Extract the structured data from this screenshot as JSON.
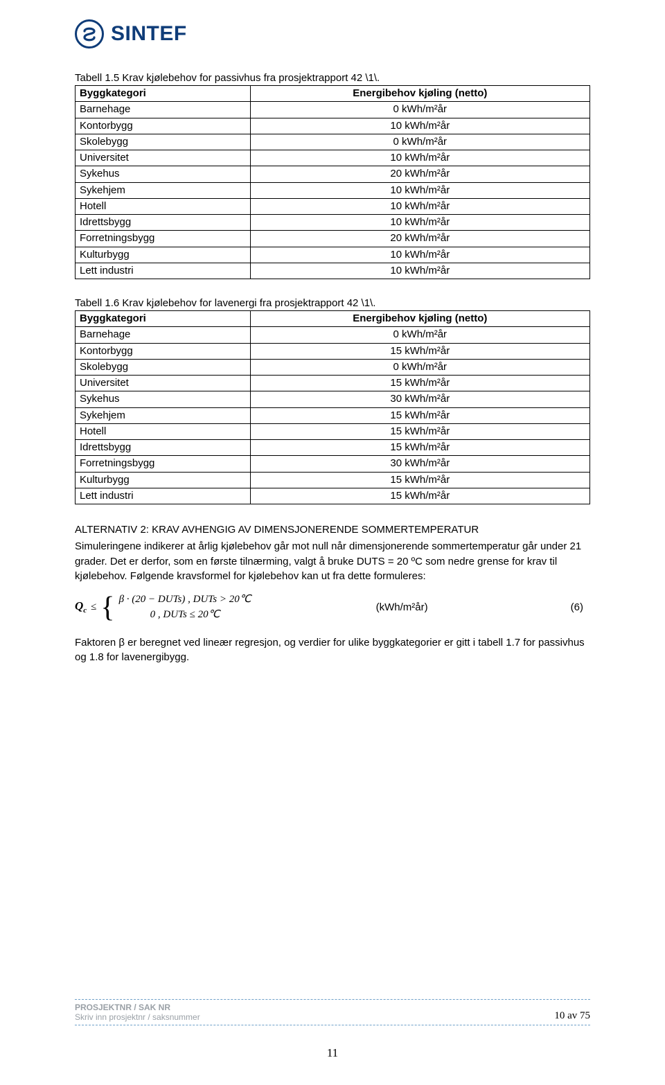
{
  "logo": {
    "text": "SINTEF",
    "color": "#0f3c78"
  },
  "table1": {
    "caption": "Tabell 1.5 Krav kjølebehov for passivhus fra prosjektrapport 42 \\1\\.",
    "header_left": "Byggkategori",
    "header_right": "Energibehov kjøling (netto)",
    "rows": [
      {
        "label": "Barnehage",
        "value": "0 kWh/m²år"
      },
      {
        "label": "Kontorbygg",
        "value": "10 kWh/m²år"
      },
      {
        "label": "Skolebygg",
        "value": "0 kWh/m²år"
      },
      {
        "label": "Universitet",
        "value": "10 kWh/m²år"
      },
      {
        "label": "Sykehus",
        "value": "20 kWh/m²år"
      },
      {
        "label": "Sykehjem",
        "value": "10 kWh/m²år"
      },
      {
        "label": "Hotell",
        "value": "10 kWh/m²år"
      },
      {
        "label": "Idrettsbygg",
        "value": "10 kWh/m²år"
      },
      {
        "label": "Forretningsbygg",
        "value": "20 kWh/m²år"
      },
      {
        "label": "Kulturbygg",
        "value": "10 kWh/m²år"
      },
      {
        "label": "Lett industri",
        "value": "10 kWh/m²år"
      }
    ]
  },
  "table2": {
    "caption": "Tabell 1.6 Krav kjølebehov for lavenergi fra prosjektrapport 42 \\1\\.",
    "header_left": "Byggkategori",
    "header_right": "Energibehov kjøling (netto)",
    "rows": [
      {
        "label": "Barnehage",
        "value": "0 kWh/m²år"
      },
      {
        "label": "Kontorbygg",
        "value": "15 kWh/m²år"
      },
      {
        "label": "Skolebygg",
        "value": "0 kWh/m²år"
      },
      {
        "label": "Universitet",
        "value": "15 kWh/m²år"
      },
      {
        "label": "Sykehus",
        "value": "30 kWh/m²år"
      },
      {
        "label": "Sykehjem",
        "value": "15 kWh/m²år"
      },
      {
        "label": "Hotell",
        "value": "15 kWh/m²år"
      },
      {
        "label": "Idrettsbygg",
        "value": "15 kWh/m²år"
      },
      {
        "label": "Forretningsbygg",
        "value": "30 kWh/m²år"
      },
      {
        "label": "Kulturbygg",
        "value": "15 kWh/m²år"
      },
      {
        "label": "Lett industri",
        "value": "15 kWh/m²år"
      }
    ]
  },
  "alt2": {
    "heading": "ALTERNATIV 2: KRAV AVHENGIG AV DIMENSJONERENDE SOMMERTEMPERATUR",
    "para1": "Simuleringene indikerer at årlig kjølebehov går mot null når dimensjonerende sommertemperatur går under 21 grader. Det er derfor, som en første tilnærming, valgt å bruke DUTS = 20 ºC som nedre grense for krav til kjølebehov. Følgende kravsformel for kjølebehov kan ut fra dette formuleres:"
  },
  "formula": {
    "lhs": "Q",
    "lhs_sub": "c",
    "leq": "≤",
    "case1": "β · (20 − DUTs) ,  DUTs > 20℃",
    "case2": "0 ,  DUTs ≤ 20℃",
    "unit": "(kWh/m²år)",
    "eqnum": "(6)"
  },
  "para2": "Faktoren β er beregnet ved lineær regresjon, og verdier for ulike byggkategorier er gitt i tabell 1.7 for passivhus og 1.8 for lavenergibygg.",
  "footer": {
    "l1": "PROSJEKTNR / SAK NR",
    "l2": "Skriv inn prosjektnr / saksnummer",
    "right": "10 av 75"
  },
  "page_number": "11"
}
